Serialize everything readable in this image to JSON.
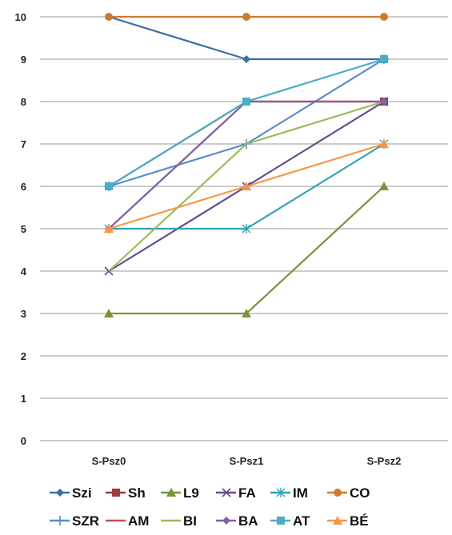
{
  "chart_data": {
    "type": "line",
    "title": "",
    "xlabel": "",
    "ylabel": "",
    "categories": [
      "S-Psz0",
      "S-Psz1",
      "S-Psz2"
    ],
    "ylim": [
      0,
      10
    ],
    "yticks": [
      0,
      1,
      2,
      3,
      4,
      5,
      6,
      7,
      8,
      9,
      10
    ],
    "grid": true,
    "legend_position": "bottom",
    "series": [
      {
        "name": "Szi",
        "values": [
          10,
          9,
          9
        ],
        "color": "#3a6ea5",
        "marker": "diamond"
      },
      {
        "name": "Sh",
        "values": [
          6,
          8,
          8
        ],
        "color": "#9c3b3b",
        "marker": "square"
      },
      {
        "name": "L9",
        "values": [
          3,
          3,
          6
        ],
        "color": "#77933c",
        "marker": "triangle"
      },
      {
        "name": "FA",
        "values": [
          4,
          6,
          8
        ],
        "color": "#674a8c",
        "marker": "x"
      },
      {
        "name": "IM",
        "values": [
          5,
          5,
          7
        ],
        "color": "#31a2b3",
        "marker": "star"
      },
      {
        "name": "CO",
        "values": [
          10,
          10,
          10
        ],
        "color": "#d07a30",
        "marker": "circle"
      },
      {
        "name": "SZR",
        "values": [
          6,
          7,
          9
        ],
        "color": "#5a8bc9",
        "marker": "plus"
      },
      {
        "name": "AM",
        "values": [
          5,
          8,
          8
        ],
        "color": "#c0504d",
        "marker": "none"
      },
      {
        "name": "BI",
        "values": [
          4,
          7,
          8
        ],
        "color": "#9bbb59",
        "marker": "none"
      },
      {
        "name": "BA",
        "values": [
          5,
          8,
          8
        ],
        "color": "#8064a2",
        "marker": "diamond"
      },
      {
        "name": "AT",
        "values": [
          6,
          8,
          9
        ],
        "color": "#4bacc6",
        "marker": "square"
      },
      {
        "name": "BÉ",
        "values": [
          5,
          6,
          7
        ],
        "color": "#f79646",
        "marker": "triangle"
      }
    ]
  }
}
